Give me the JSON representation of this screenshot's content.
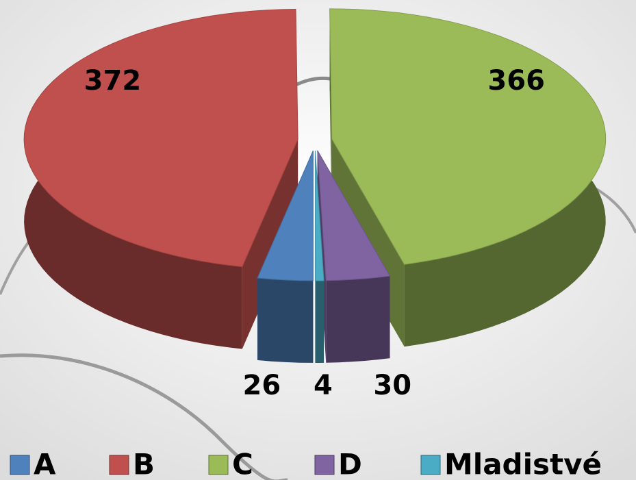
{
  "chart_data": {
    "type": "pie",
    "categories": [
      "A",
      "B",
      "C",
      "D",
      "Mladistvé"
    ],
    "values": [
      26,
      372,
      366,
      30,
      4
    ],
    "colors": [
      "#4f81bd",
      "#c0504d",
      "#9bbb59",
      "#8064a2",
      "#4bacc6"
    ],
    "legend": "bottom"
  }
}
